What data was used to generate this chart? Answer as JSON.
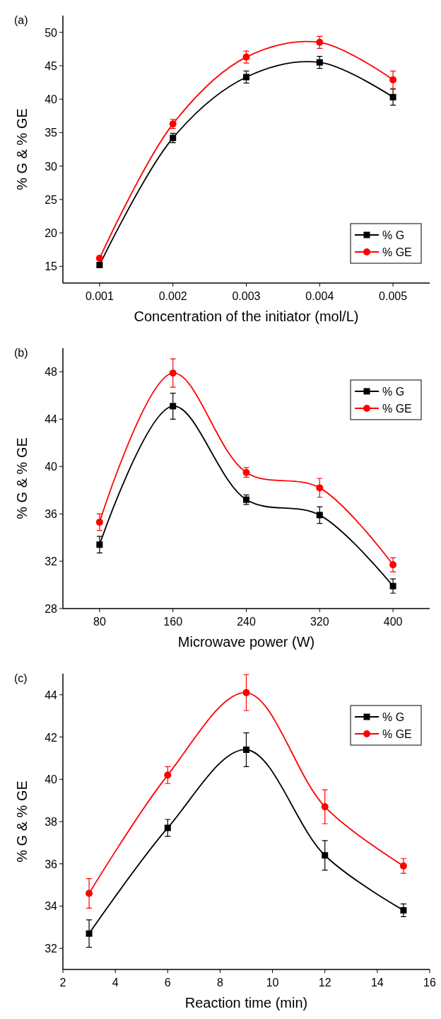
{
  "chart_data": [
    {
      "type": "line",
      "title": "(a)",
      "xlabel": "Concentration of the initiator (mol/L)",
      "ylabel": "% G & % GE",
      "x": [
        0.001,
        0.002,
        0.003,
        0.004,
        0.005
      ],
      "xlim": [
        0.0005,
        0.0055
      ],
      "xticks": [
        0.001,
        0.002,
        0.003,
        0.004,
        0.005
      ],
      "ylim": [
        12.5,
        52.5
      ],
      "yticks": [
        15,
        20,
        25,
        30,
        35,
        40,
        45,
        50
      ],
      "legend": "bottom right",
      "series": [
        {
          "name": "% G",
          "color": "#000000",
          "marker": "square",
          "values": [
            15.2,
            34.2,
            43.3,
            45.5,
            40.3
          ],
          "errors": [
            0.3,
            0.7,
            0.9,
            0.9,
            1.2
          ]
        },
        {
          "name": "% GE",
          "color": "#ff0000",
          "marker": "circle",
          "values": [
            16.2,
            36.3,
            46.3,
            48.5,
            42.9
          ],
          "errors": [
            0.3,
            0.7,
            0.9,
            0.9,
            1.3
          ]
        }
      ]
    },
    {
      "type": "line",
      "title": "(b)",
      "xlabel": "Microwave power (W)",
      "ylabel": "% G & % GE",
      "x": [
        80,
        160,
        240,
        320,
        400
      ],
      "xlim": [
        40,
        440
      ],
      "xticks": [
        80,
        160,
        240,
        320,
        400
      ],
      "ylim": [
        28,
        50
      ],
      "yticks": [
        28,
        32,
        36,
        40,
        44,
        48
      ],
      "legend": "top right",
      "series": [
        {
          "name": "% G",
          "color": "#000000",
          "marker": "square",
          "values": [
            33.4,
            45.1,
            37.2,
            35.9,
            29.9
          ],
          "errors": [
            0.7,
            1.1,
            0.4,
            0.7,
            0.6
          ]
        },
        {
          "name": "% GE",
          "color": "#ff0000",
          "marker": "circle",
          "values": [
            35.3,
            47.9,
            39.5,
            38.2,
            31.7
          ],
          "errors": [
            0.7,
            1.2,
            0.4,
            0.8,
            0.6
          ]
        }
      ]
    },
    {
      "type": "line",
      "title": "(c)",
      "xlabel": "Reaction time (min)",
      "ylabel": "% G & % GE",
      "x": [
        3,
        6,
        9,
        12,
        15
      ],
      "xlim": [
        2,
        16
      ],
      "xticks": [
        2,
        4,
        6,
        8,
        10,
        12,
        14,
        16
      ],
      "ylim": [
        31,
        45
      ],
      "yticks": [
        32,
        34,
        36,
        38,
        40,
        42,
        44
      ],
      "legend": "top right",
      "series": [
        {
          "name": "% G",
          "color": "#000000",
          "marker": "square",
          "values": [
            32.7,
            37.7,
            41.4,
            36.4,
            33.8
          ],
          "errors": [
            0.65,
            0.4,
            0.8,
            0.7,
            0.3
          ]
        },
        {
          "name": "% GE",
          "color": "#ff0000",
          "marker": "circle",
          "values": [
            34.6,
            40.2,
            44.1,
            38.7,
            35.9
          ],
          "errors": [
            0.7,
            0.4,
            0.85,
            0.8,
            0.35
          ]
        }
      ]
    }
  ]
}
